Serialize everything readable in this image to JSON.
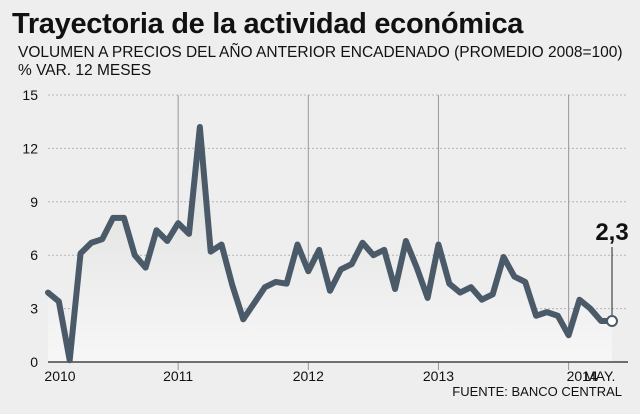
{
  "header": {
    "title": "Trayectoria de la actividad económica",
    "subtitle": "VOLUMEN A PRECIOS DEL AÑO ANTERIOR ENCADENADO (PROMEDIO 2008=100)",
    "unit": "% VAR. 12 MESES"
  },
  "footer": {
    "source": "FUENTE: BANCO CENTRAL"
  },
  "colors": {
    "background": "#eeeeee",
    "line": "#4a5a68",
    "area_top": "#d9dcd9",
    "grid": "#b5b5b5",
    "axis": "#444444",
    "marker_fill": "#ffffff"
  },
  "chart_data": {
    "type": "line",
    "title": "Trayectoria de la actividad económica",
    "subtitle": "VOLUMEN A PRECIOS DEL AÑO ANTERIOR ENCADENADO (PROMEDIO 2008=100)",
    "ylabel": "% VAR. 12 MESES",
    "xlabel": "",
    "ylim": [
      0,
      15
    ],
    "yticks": [
      0,
      3,
      6,
      9,
      12,
      15
    ],
    "x_start": "2010-01",
    "x_end": "2014-05",
    "x_tick_labels": [
      {
        "label": "2010",
        "date": "2010-01"
      },
      {
        "label": "2011",
        "date": "2011-01"
      },
      {
        "label": "2012",
        "date": "2012-01"
      },
      {
        "label": "2013",
        "date": "2013-01"
      },
      {
        "label": "2014",
        "date": "2014-01"
      },
      {
        "label": "MAY.",
        "date": "2014-05"
      }
    ],
    "vertical_gridlines": [
      "2011-01",
      "2012-01",
      "2013-01",
      "2014-01"
    ],
    "grid": true,
    "series": [
      {
        "x": [
          "2010-01",
          "2010-02",
          "2010-03",
          "2010-04",
          "2010-05",
          "2010-06",
          "2010-07",
          "2010-08",
          "2010-09",
          "2010-10",
          "2010-11",
          "2010-12",
          "2011-01",
          "2011-02",
          "2011-03",
          "2011-04",
          "2011-05",
          "2011-06",
          "2011-07",
          "2011-08",
          "2011-09",
          "2011-10",
          "2011-11",
          "2011-12",
          "2012-01",
          "2012-02",
          "2012-03",
          "2012-04",
          "2012-05",
          "2012-06",
          "2012-07",
          "2012-08",
          "2012-09",
          "2012-10",
          "2012-11",
          "2012-12",
          "2013-01",
          "2013-02",
          "2013-03",
          "2013-04",
          "2013-05",
          "2013-06",
          "2013-07",
          "2013-08",
          "2013-09",
          "2013-10",
          "2013-11",
          "2013-12",
          "2014-01",
          "2014-02",
          "2014-03",
          "2014-04",
          "2014-05"
        ],
        "values": [
          3.9,
          3.4,
          0.1,
          6.1,
          6.7,
          6.9,
          8.1,
          8.1,
          6.0,
          5.3,
          7.4,
          6.8,
          7.8,
          7.2,
          13.2,
          6.2,
          6.6,
          4.3,
          2.4,
          3.3,
          4.2,
          4.5,
          4.4,
          6.6,
          5.1,
          6.3,
          4.0,
          5.2,
          5.5,
          6.7,
          6.0,
          6.3,
          4.1,
          6.8,
          5.3,
          3.6,
          6.6,
          4.4,
          3.9,
          4.2,
          3.5,
          3.8,
          5.9,
          4.8,
          4.5,
          2.6,
          2.8,
          2.6,
          1.5,
          3.5,
          3.0,
          2.3,
          2.3
        ]
      }
    ],
    "annotations": [
      {
        "text": "2,3",
        "date": "2014-05",
        "value": 2.3
      }
    ]
  }
}
